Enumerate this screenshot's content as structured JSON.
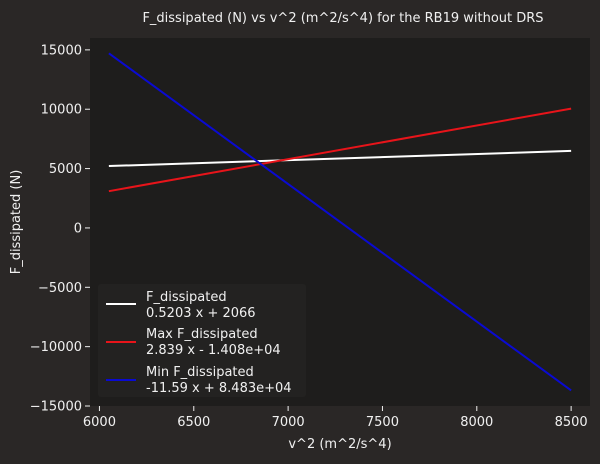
{
  "chart_data": {
    "type": "line",
    "title": "F_dissipated (N) vs v^2 (m^2/s^4) for the RB19 without DRS",
    "xlabel": "v^2 (m^2/s^4)",
    "ylabel": "F_dissipated (N)",
    "xlim": [
      5950,
      8600
    ],
    "ylim": [
      -15000,
      16000
    ],
    "xticks": [
      6000,
      6500,
      7000,
      7500,
      8000,
      8500
    ],
    "yticks": [
      -15000,
      -10000,
      -5000,
      0,
      5000,
      10000,
      15000
    ],
    "grid": false,
    "legend_position": "lower-left",
    "series": [
      {
        "name": "F_dissipated",
        "equation": "0.5203 x + 2066",
        "color": "#ffffff",
        "x": [
          6050,
          8500
        ],
        "y": [
          5214,
          6489
        ]
      },
      {
        "name": "Max F_dissipated",
        "equation": "2.839 x - 1.408e+04",
        "color": "#e8141a",
        "x": [
          6050,
          8500
        ],
        "y": [
          3096,
          10052
        ]
      },
      {
        "name": "Min F_dissipated",
        "equation": "-11.59 x + 8.483e+04",
        "color": "#0a0ad2",
        "x": [
          6050,
          8500
        ],
        "y": [
          14711,
          -13685
        ]
      }
    ]
  },
  "colors": {
    "figure_background": "#2a2726",
    "axes_background": "#1e1d1c",
    "text": "#f0f0f0",
    "legend_background": "#242322"
  }
}
